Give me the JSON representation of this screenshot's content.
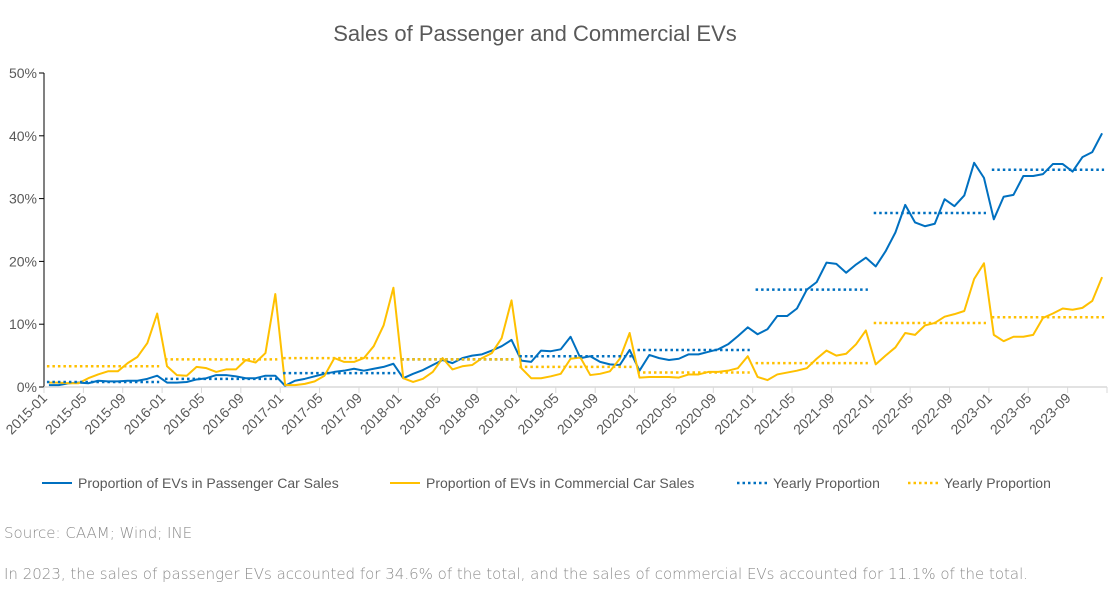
{
  "chart_data": {
    "type": "line",
    "title": "Sales of Passenger and Commercial EVs",
    "xlabel": "",
    "ylabel": "",
    "ylim": [
      0,
      50
    ],
    "yticks": [
      "0%",
      "10%",
      "20%",
      "30%",
      "40%",
      "50%"
    ],
    "start": "2015-01",
    "xtick_labels": [
      "2015-01",
      "2015-05",
      "2015-09",
      "2016-01",
      "2016-05",
      "2016-09",
      "2017-01",
      "2017-05",
      "2017-09",
      "2018-01",
      "2018-05",
      "2018-09",
      "2019-01",
      "2019-05",
      "2019-09",
      "2020-01",
      "2020-05",
      "2020-09",
      "2021-01",
      "2021-05",
      "2021-09",
      "2022-01",
      "2022-05",
      "2022-09",
      "2023-01",
      "2023-05",
      "2023-09"
    ],
    "years": [
      "2015",
      "2016",
      "2017",
      "2018",
      "2019",
      "2020",
      "2021",
      "2022",
      "2023"
    ],
    "legend_position": "bottom",
    "grid": false,
    "series": [
      {
        "name": "Proportion of EVs in Passenger Car Sales",
        "color": "#0070c0",
        "style": "solid",
        "values": [
          0.3,
          0.3,
          0.6,
          0.7,
          0.6,
          1.0,
          0.9,
          0.9,
          1.0,
          1.0,
          1.3,
          1.8,
          0.7,
          0.7,
          0.8,
          1.2,
          1.4,
          1.9,
          1.9,
          1.7,
          1.4,
          1.4,
          1.8,
          1.8,
          0.2,
          1.0,
          1.3,
          1.7,
          2.1,
          2.4,
          2.6,
          2.9,
          2.6,
          2.9,
          3.2,
          3.7,
          1.4,
          2.1,
          2.7,
          3.5,
          4.3,
          3.8,
          4.6,
          5.0,
          5.2,
          5.8,
          6.5,
          7.5,
          4.2,
          4.0,
          5.8,
          5.7,
          6.0,
          8.0,
          4.6,
          4.9,
          4.0,
          3.6,
          3.5,
          5.9,
          2.6,
          5.1,
          4.6,
          4.3,
          4.5,
          5.2,
          5.2,
          5.6,
          6.0,
          6.8,
          8.1,
          9.5,
          8.4,
          9.2,
          11.3,
          11.3,
          12.5,
          15.5,
          16.7,
          19.8,
          19.6,
          18.2,
          19.5,
          20.6,
          19.2,
          21.6,
          24.6,
          29.0,
          26.2,
          25.6,
          26.0,
          29.9,
          28.8,
          30.5,
          35.7,
          33.3,
          26.7,
          30.3,
          30.6,
          33.6,
          33.6,
          33.9,
          35.5,
          35.5,
          34.3,
          36.6,
          37.4,
          40.4
        ]
      },
      {
        "name": "Proportion of EVs in Commercial Car Sales",
        "color": "#ffc000",
        "style": "solid",
        "values": [
          0.7,
          0.7,
          0.6,
          0.6,
          1.4,
          2.0,
          2.5,
          2.5,
          3.8,
          4.8,
          7.0,
          11.7,
          3.3,
          1.9,
          1.8,
          3.2,
          3.0,
          2.4,
          2.8,
          2.8,
          4.3,
          3.9,
          5.4,
          14.8,
          0.3,
          0.3,
          0.5,
          0.9,
          1.8,
          4.6,
          4.0,
          4.0,
          4.6,
          6.5,
          9.8,
          15.8,
          1.4,
          0.8,
          1.3,
          2.4,
          4.6,
          2.8,
          3.3,
          3.5,
          4.6,
          5.4,
          7.8,
          13.8,
          3.0,
          1.4,
          1.4,
          1.7,
          2.1,
          4.5,
          4.7,
          1.9,
          2.1,
          2.5,
          4.5,
          8.6,
          1.5,
          1.6,
          1.6,
          1.6,
          1.5,
          2.0,
          2.0,
          2.4,
          2.4,
          2.6,
          3.0,
          4.9,
          1.6,
          1.1,
          2.0,
          2.3,
          2.6,
          3.0,
          4.5,
          5.8,
          5.0,
          5.3,
          6.8,
          9.0,
          3.6,
          5.0,
          6.3,
          8.6,
          8.3,
          9.8,
          10.2,
          11.2,
          11.6,
          12.1,
          17.2,
          19.7,
          8.3,
          7.3,
          8.0,
          8.0,
          8.3,
          11.0,
          11.7,
          12.5,
          12.3,
          12.6,
          13.7,
          17.5
        ]
      },
      {
        "name": "Yearly Proportion",
        "color": "#0070c0",
        "style": "dotted",
        "values": [
          0.8,
          1.3,
          2.2,
          4.4,
          4.9,
          5.9,
          15.5,
          27.7,
          34.6
        ]
      },
      {
        "name": "Yearly Proportion",
        "color": "#ffc000",
        "style": "dotted",
        "values": [
          3.3,
          4.4,
          4.6,
          4.4,
          3.2,
          2.3,
          3.8,
          10.2,
          11.1
        ]
      }
    ]
  },
  "source": "Source: CAAM; Wind; INE",
  "footnote": "In 2023, the sales of passenger EVs accounted for 34.6% of the total, and the sales of commercial EVs accounted for 11.1% of the total."
}
